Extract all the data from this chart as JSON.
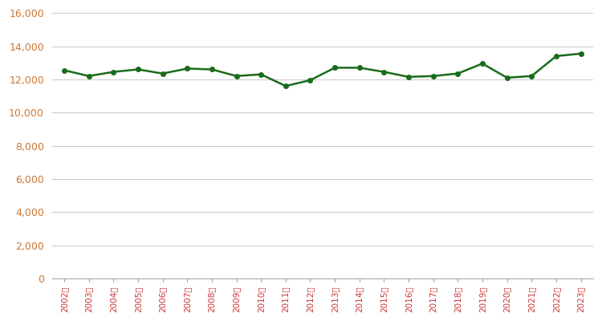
{
  "years": [
    2002,
    2003,
    2004,
    2005,
    2006,
    2007,
    2008,
    2009,
    2010,
    2011,
    2012,
    2013,
    2014,
    2015,
    2016,
    2017,
    2018,
    2019,
    2020,
    2021,
    2022,
    2023
  ],
  "values": [
    12550,
    12200,
    12450,
    12600,
    12350,
    12650,
    12600,
    12200,
    12300,
    11600,
    11950,
    12700,
    12700,
    12450,
    12150,
    12200,
    12350,
    12950,
    12100,
    12200,
    13400,
    13550
  ],
  "line_color": "#1a6b1a",
  "marker": "o",
  "marker_size": 4,
  "line_width": 1.8,
  "ylim": [
    0,
    16000
  ],
  "yticks": [
    0,
    2000,
    4000,
    6000,
    8000,
    10000,
    12000,
    14000,
    16000
  ],
  "grid_color": "#cccccc",
  "background_color": "#ffffff",
  "tick_label_color_x": "#cc3333",
  "tick_label_color_y": "#cc7733",
  "xlabel_suffix": "年",
  "figsize": [
    7.5,
    4.0
  ],
  "dpi": 100
}
